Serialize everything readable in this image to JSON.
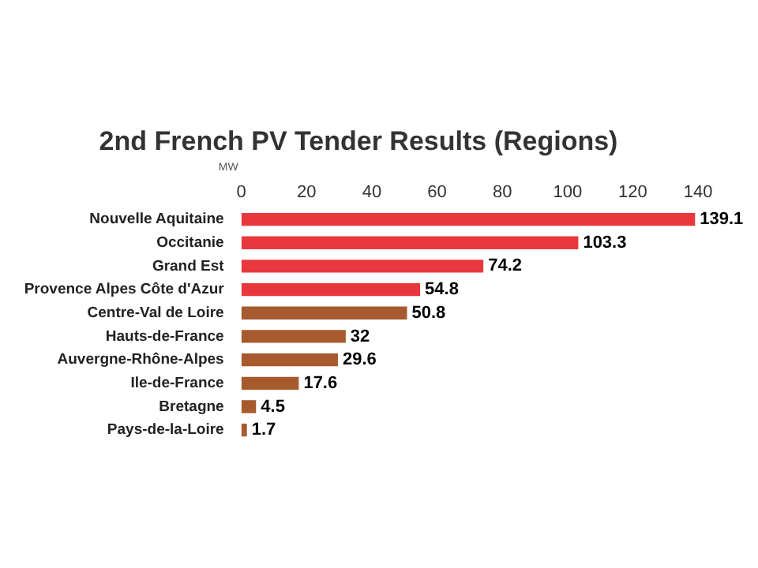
{
  "chart_data": {
    "type": "bar",
    "orientation": "horizontal",
    "title": "2nd French PV Tender Results (Regions)",
    "xlabel": "MW",
    "categories": [
      "Nouvelle Aquitaine",
      "Occitanie",
      "Grand Est",
      "Provence Alpes Côte d'Azur",
      "Centre-Val de Loire",
      "Hauts-de-France",
      "Auvergne-Rhône-Alpes",
      "Ile-de-France",
      "Bretagne",
      "Pays-de-la-Loire"
    ],
    "values": [
      139.1,
      103.3,
      74.2,
      54.8,
      50.8,
      32,
      29.6,
      17.6,
      4.5,
      1.7
    ],
    "colors": [
      "#e8383d",
      "#e8383d",
      "#e8383d",
      "#e8383d",
      "#a65a2e",
      "#a65a2e",
      "#a65a2e",
      "#a65a2e",
      "#a65a2e",
      "#a65a2e"
    ],
    "xlim": [
      0,
      140
    ],
    "xticks": [
      0,
      20,
      40,
      60,
      80,
      100,
      120,
      140
    ],
    "data_labels": true,
    "grid": false,
    "legend": false
  }
}
